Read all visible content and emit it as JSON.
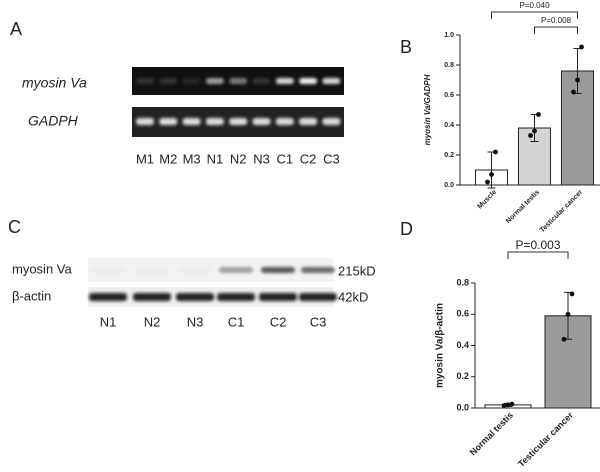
{
  "panel_labels": [
    "A",
    "B",
    "C",
    "D"
  ],
  "gel_a": {
    "rows": [
      "myosin Va",
      "GADPH"
    ],
    "lanes": [
      "M1",
      "M2",
      "M3",
      "N1",
      "N2",
      "N3",
      "C1",
      "C2",
      "C3"
    ]
  },
  "gel_c": {
    "rows": [
      "myosin Va",
      "β-actin"
    ],
    "sizes": [
      "215kD",
      "42kD"
    ],
    "lanes": [
      "N1",
      "N2",
      "N3",
      "C1",
      "C2",
      "C3"
    ]
  },
  "chart_data": [
    {
      "type": "bar",
      "ylabel": "myosin Va/GADPH",
      "categories": [
        "Muscle",
        "Normal testis",
        "Testicular cancer"
      ],
      "values": [
        0.1,
        0.38,
        0.76
      ],
      "errors": [
        0.12,
        0.09,
        0.15
      ],
      "points": [
        [
          0.02,
          0.07,
          0.22
        ],
        [
          0.33,
          0.36,
          0.47
        ],
        [
          0.62,
          0.7,
          0.92
        ]
      ],
      "colors": [
        "#ffffff",
        "#d4d4d4",
        "#9a9a9a"
      ],
      "ylim": [
        0,
        1
      ],
      "yticks": [
        {
          "value": 0,
          "label": "0.0"
        },
        {
          "value": 0.2,
          "label": "0.2"
        },
        {
          "value": 0.4,
          "label": "0.4"
        },
        {
          "value": 0.6,
          "label": "0.6"
        },
        {
          "value": 0.8,
          "label": "0.8"
        },
        {
          "value": 1,
          "label": "1.0"
        }
      ],
      "annotations": [
        "P=0.040",
        "P=0.008"
      ]
    },
    {
      "type": "bar",
      "ylabel": "myosin Va/β-actin",
      "categories": [
        "Normal testis",
        "Testicular cancer"
      ],
      "values": [
        0.02,
        0.59
      ],
      "errors": [
        0.01,
        0.15
      ],
      "points": [
        [
          0.015,
          0.02,
          0.025
        ],
        [
          0.44,
          0.6,
          0.73
        ]
      ],
      "colors": [
        "#ffffff",
        "#9a9a9a"
      ],
      "ylim": [
        0,
        0.8
      ],
      "yticks": [
        {
          "value": 0,
          "label": "0.0"
        },
        {
          "value": 0.2,
          "label": "0.2"
        },
        {
          "value": 0.4,
          "label": "0.4"
        },
        {
          "value": 0.6,
          "label": "0.6"
        },
        {
          "value": 0.8,
          "label": "0.8"
        }
      ],
      "annotations": [
        "P=0.003"
      ]
    }
  ]
}
